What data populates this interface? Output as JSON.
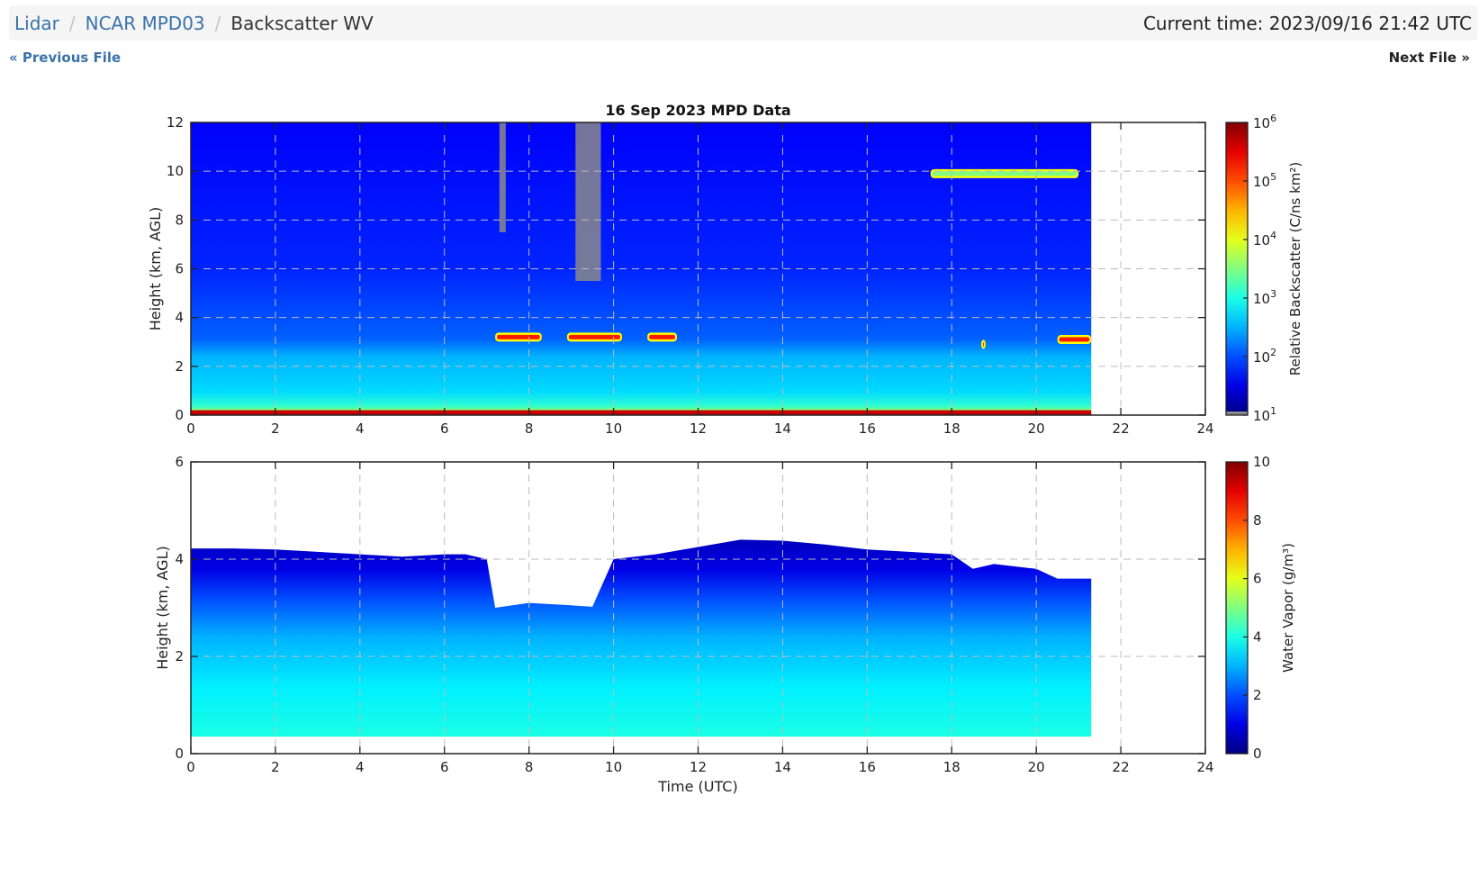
{
  "breadcrumb": {
    "items": [
      "Lidar",
      "NCAR MPD03"
    ],
    "current": "Backscatter WV",
    "current_time": "Current time: 2023/09/16 21:42 UTC"
  },
  "pager": {
    "previous": "« Previous File",
    "next": "Next File »"
  },
  "colors": {
    "link": "#3a72a8",
    "breadcrumb_bg": "#f5f5f5"
  },
  "chart_data": [
    {
      "type": "heatmap",
      "title": "16 Sep 2023 MPD Data",
      "xlabel": "",
      "ylabel": "Height (km, AGL)",
      "xlim": [
        0,
        24
      ],
      "ylim": [
        0,
        12
      ],
      "xticks": [
        "0",
        "2",
        "4",
        "6",
        "8",
        "10",
        "12",
        "14",
        "16",
        "18",
        "20",
        "22",
        "24"
      ],
      "yticks": [
        "0",
        "2",
        "4",
        "6",
        "8",
        "10",
        "12"
      ],
      "grid": true,
      "data_end_time": 21.3,
      "colorbar": {
        "label": "Relative Backscatter (C/ns km²)",
        "scale": "log",
        "range": [
          10,
          1000000
        ],
        "ticks": [
          {
            "base": "10",
            "exp": "1"
          },
          {
            "base": "10",
            "exp": "2"
          },
          {
            "base": "10",
            "exp": "3"
          },
          {
            "base": "10",
            "exp": "4"
          },
          {
            "base": "10",
            "exp": "5"
          },
          {
            "base": "10",
            "exp": "6"
          }
        ]
      },
      "features": [
        {
          "kind": "surface-layer",
          "height_km": [
            0,
            0.2
          ]
        },
        {
          "kind": "boundary-layer-top",
          "height_km": 3.1
        },
        {
          "kind": "cloud",
          "time_utc": [
            7.2,
            8.3
          ],
          "height_km": 3.2
        },
        {
          "kind": "cloud",
          "time_utc": [
            8.9,
            10.2
          ],
          "height_km": 3.2
        },
        {
          "kind": "cloud",
          "time_utc": [
            10.8,
            11.5
          ],
          "height_km": 3.2
        },
        {
          "kind": "cloud",
          "time_utc": [
            18.7,
            18.8
          ],
          "height_km": 2.9
        },
        {
          "kind": "cloud",
          "time_utc": [
            20.5,
            21.3
          ],
          "height_km": 3.1
        },
        {
          "kind": "cirrus",
          "time_utc": [
            17.5,
            21.0
          ],
          "height_km": 9.9
        },
        {
          "kind": "masked",
          "time_utc": [
            7.3,
            7.45
          ],
          "height_km": [
            7.5,
            12
          ]
        },
        {
          "kind": "masked",
          "time_utc": [
            9.1,
            9.7
          ],
          "height_km": [
            5.5,
            12
          ]
        }
      ]
    },
    {
      "type": "heatmap",
      "title": "",
      "xlabel": "Time (UTC)",
      "ylabel": "Height (km, AGL)",
      "xlim": [
        0,
        24
      ],
      "ylim": [
        0,
        6
      ],
      "xticks": [
        "0",
        "2",
        "4",
        "6",
        "8",
        "10",
        "12",
        "14",
        "16",
        "18",
        "20",
        "22",
        "24"
      ],
      "yticks": [
        "0",
        "2",
        "4",
        "6"
      ],
      "grid": true,
      "data_end_time": 21.3,
      "min_height_km": 0.35,
      "colorbar": {
        "label": "Water Vapor (g/m³)",
        "scale": "linear",
        "range": [
          0,
          10
        ],
        "ticks": [
          "0",
          "2",
          "4",
          "6",
          "8",
          "10"
        ]
      },
      "profile_top_km": [
        [
          0.0,
          4.22
        ],
        [
          1.0,
          4.22
        ],
        [
          2.0,
          4.2
        ],
        [
          3.0,
          4.15
        ],
        [
          4.0,
          4.1
        ],
        [
          5.0,
          4.05
        ],
        [
          6.0,
          4.1
        ],
        [
          6.5,
          4.1
        ],
        [
          7.0,
          4.0
        ],
        [
          7.2,
          3.0
        ],
        [
          8.0,
          3.1
        ],
        [
          9.0,
          3.05
        ],
        [
          9.5,
          3.02
        ],
        [
          10.0,
          4.0
        ],
        [
          11.0,
          4.1
        ],
        [
          12.0,
          4.25
        ],
        [
          13.0,
          4.4
        ],
        [
          14.0,
          4.38
        ],
        [
          15.0,
          4.3
        ],
        [
          16.0,
          4.2
        ],
        [
          17.0,
          4.15
        ],
        [
          18.0,
          4.1
        ],
        [
          18.5,
          3.8
        ],
        [
          19.0,
          3.9
        ],
        [
          20.0,
          3.8
        ],
        [
          20.5,
          3.6
        ],
        [
          21.3,
          3.6
        ]
      ]
    }
  ]
}
